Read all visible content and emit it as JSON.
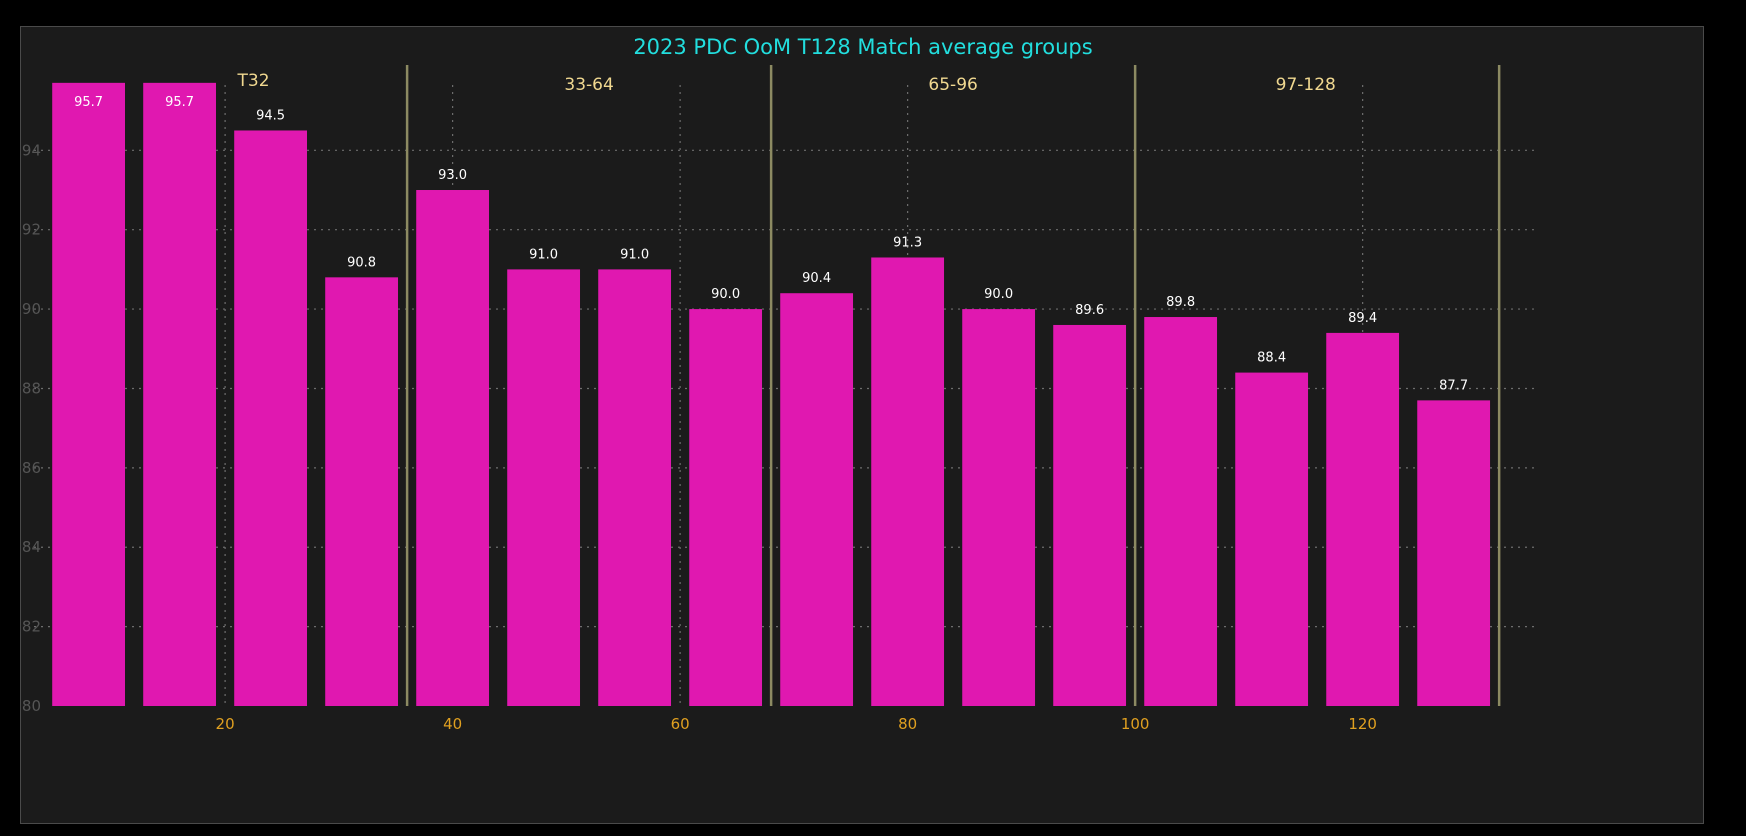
{
  "colors": {
    "background": "#000000",
    "plot_bg": "#1b1b1b",
    "title": "#22dede",
    "bar": "#e018b0",
    "bar_label": "#ffffff",
    "tick_y": "#555555",
    "tick_x": "#e0a020",
    "group_line": "#8c8a62",
    "group_label": "#f0d890",
    "grid": "#6e6e6e"
  },
  "chart_data": {
    "type": "bar",
    "title": "2023 PDC OoM T128 Match average groups",
    "xlabel": "",
    "ylabel": "",
    "ylim": [
      80,
      96.2
    ],
    "xlim": [
      3.2,
      134.8
    ],
    "grid": true,
    "yticks": [
      80,
      82,
      84,
      86,
      88,
      90,
      92,
      94
    ],
    "xticks": [
      20,
      40,
      60,
      80,
      100,
      120
    ],
    "x": [
      8,
      16,
      24,
      32,
      40,
      48,
      56,
      64,
      72,
      80,
      88,
      96,
      104,
      112,
      120,
      128
    ],
    "values": [
      95.7,
      95.7,
      94.5,
      90.8,
      93.0,
      91.0,
      91.0,
      90.0,
      90.4,
      91.3,
      90.0,
      89.6,
      89.8,
      88.4,
      89.4,
      87.7
    ],
    "value_labels": [
      "95.7",
      "95.7",
      "94.5",
      "90.8",
      "93.0",
      "91.0",
      "91.0",
      "90.0",
      "90.4",
      "91.3",
      "90.0",
      "89.6",
      "89.8",
      "88.4",
      "89.4",
      "87.7"
    ],
    "group_dividers": [
      36,
      68,
      100,
      132
    ],
    "groups": [
      {
        "label": "T32",
        "x": 22.5
      },
      {
        "label": "33-64",
        "x": 52
      },
      {
        "label": "65-96",
        "x": 84
      },
      {
        "label": "97-128",
        "x": 115
      }
    ]
  }
}
